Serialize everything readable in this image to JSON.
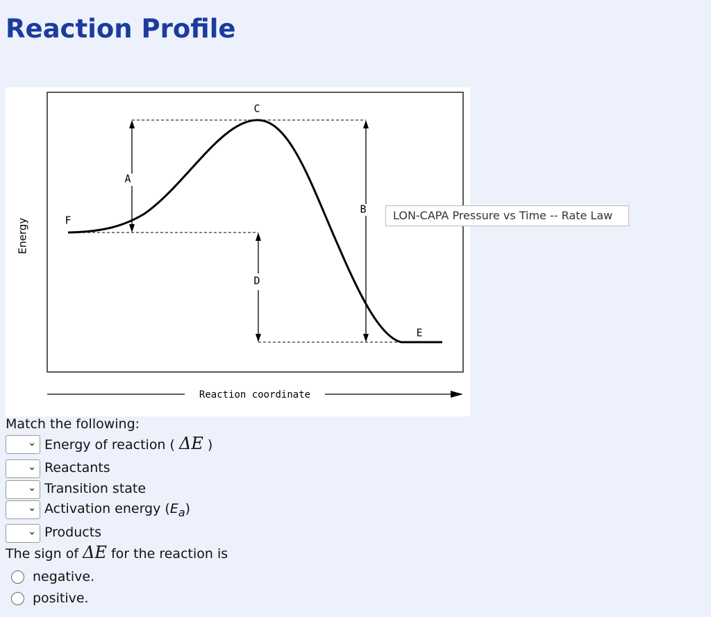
{
  "header": {
    "title": "Reaction Profile"
  },
  "diagram": {
    "labels": [
      "C",
      "A",
      "B",
      "F",
      "D",
      "E"
    ],
    "y_axis": "Energy",
    "x_axis": "Reaction coordinate"
  },
  "tooltip": "LON-CAPA Pressure vs Time -- Rate Law",
  "match": {
    "prompt": "Match the following:",
    "items": [
      {
        "parts": [
          {
            "text": "Energy of reaction ( "
          },
          {
            "math": "ΔE"
          },
          {
            "text": " )"
          }
        ]
      },
      {
        "parts": [
          {
            "text": "Reactants"
          }
        ]
      },
      {
        "parts": [
          {
            "text": "Transition state"
          }
        ]
      },
      {
        "parts": [
          {
            "text": "Activation energy ("
          },
          {
            "math": "E"
          },
          {
            "sub": "a"
          },
          {
            "text": ")"
          }
        ]
      },
      {
        "parts": [
          {
            "text": "Products"
          }
        ]
      }
    ]
  },
  "question": {
    "parts": [
      {
        "text": "The sign of "
      },
      {
        "math": "ΔE"
      },
      {
        "text": " for the reaction is"
      }
    ],
    "options": [
      "negative.",
      "positive."
    ]
  }
}
